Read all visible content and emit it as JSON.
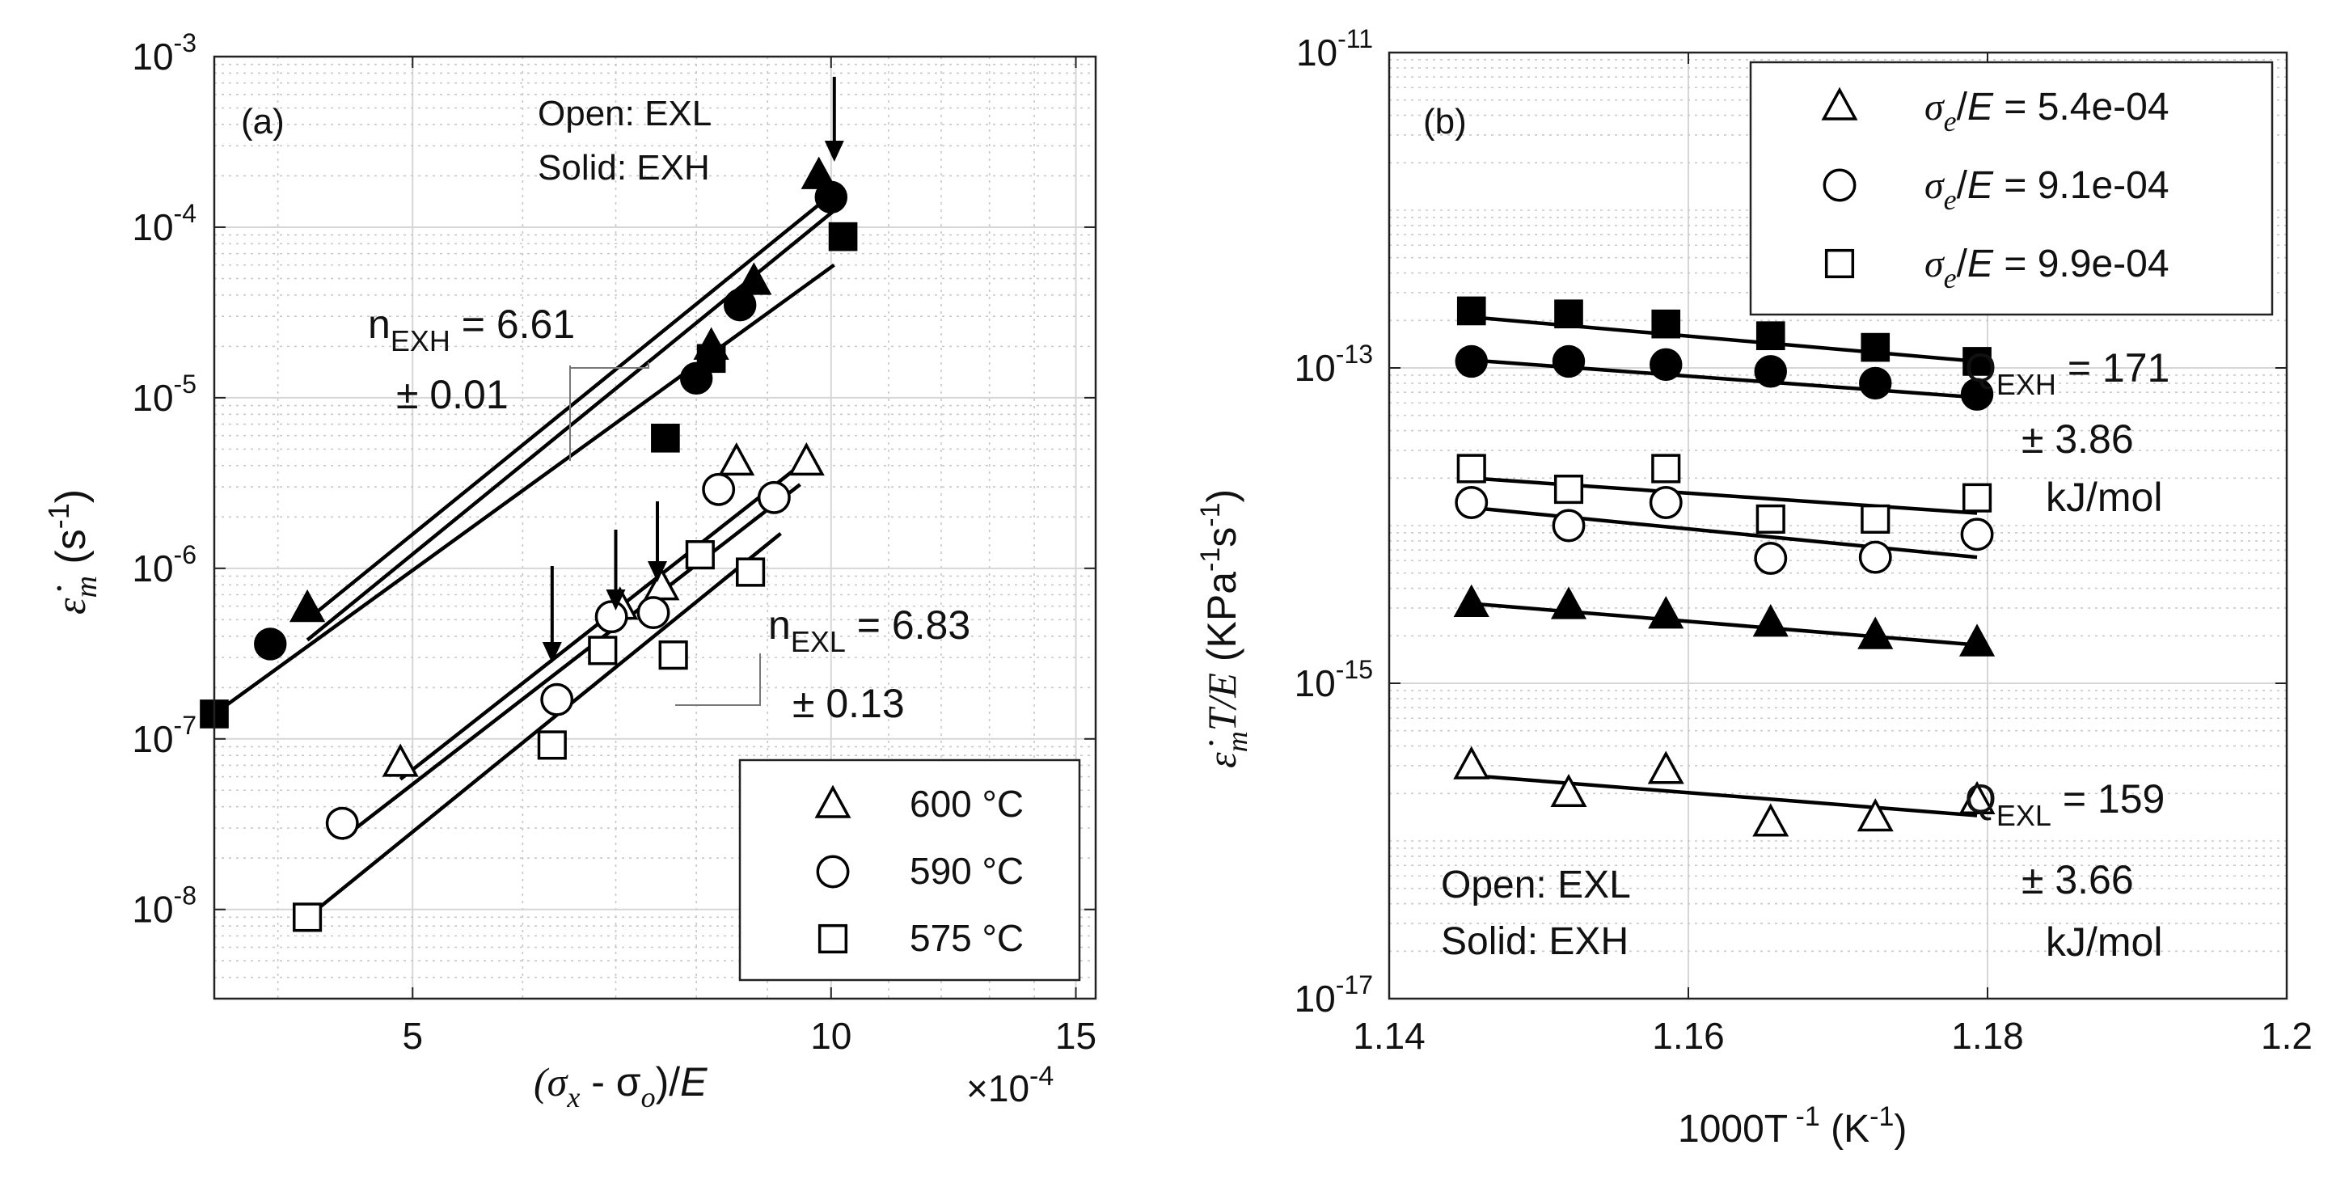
{
  "chart_data": [
    {
      "panel": "(a)",
      "type": "scatter",
      "xscale": "log",
      "yscale": "log",
      "xlim": [
        3.6,
        15.5
      ],
      "ylim": [
        3e-09,
        0.001
      ],
      "xticks": [
        5,
        10,
        15
      ],
      "xtick_labels": [
        "5",
        "10",
        "15"
      ],
      "x_multiplier": "×10",
      "x_multiplier_exp": "-4",
      "ytick_labels": [
        {
          "value": 1e-08,
          "base": "10",
          "exp": "-8"
        },
        {
          "value": 1e-07,
          "base": "10",
          "exp": "-7"
        },
        {
          "value": 1e-06,
          "base": "10",
          "exp": "-6"
        },
        {
          "value": 1e-05,
          "base": "10",
          "exp": "-5"
        },
        {
          "value": 0.0001,
          "base": "10",
          "exp": "-4"
        },
        {
          "value": 0.001,
          "base": "10",
          "exp": "-3"
        }
      ],
      "xlabel": {
        "open": "(σ",
        "sub1": "x",
        "mid": " - σ",
        "sub2": "o",
        "close": ")/",
        "e": "E"
      },
      "ylabel": {
        "sym": "ε̇",
        "sub": "m",
        "unit": " (s",
        "exp": "-1",
        "close": ")"
      },
      "annotations": {
        "open_label": "Open: EXL",
        "solid_label": "Solid: EXH",
        "n_exh": {
          "n": "n",
          "sub": "EXH",
          "value": " = 6.61",
          "pm": "± 0.01"
        },
        "n_exl": {
          "n": "n",
          "sub": "EXL",
          "value": " = 6.83",
          "pm": "± 0.13"
        }
      },
      "arrows_x": [
        6.3,
        7.0,
        7.5,
        10.0
      ],
      "series": [
        {
          "name": "600 °C",
          "marker": "triangle",
          "fill": "open",
          "x": [
            4.9,
            7.05,
            7.55,
            8.55,
            9.6
          ],
          "y": [
            7.2e-08,
            6e-07,
            7.8e-07,
            4.2e-06,
            4.2e-06
          ],
          "fit": {
            "x": [
              4.9,
              9.6
            ],
            "y": [
              5.8e-08,
              4.3e-06
            ]
          }
        },
        {
          "name": "590 °C",
          "marker": "circle",
          "fill": "open",
          "x": [
            4.45,
            6.35,
            6.95,
            7.45,
            8.3,
            9.1
          ],
          "y": [
            3.2e-08,
            1.7e-07,
            5.2e-07,
            5.5e-07,
            2.9e-06,
            2.6e-06
          ],
          "fit": {
            "x": [
              4.45,
              9.5
            ],
            "y": [
              2.6e-08,
              3.1e-06
            ]
          }
        },
        {
          "name": "575 °C",
          "marker": "square",
          "fill": "open",
          "x": [
            4.2,
            6.3,
            6.85,
            7.7,
            8.05,
            8.75
          ],
          "y": [
            9e-09,
            9.2e-08,
            3.3e-07,
            3.1e-07,
            1.2e-06,
            9.5e-07
          ],
          "fit": {
            "x": [
              4.2,
              9.2
            ],
            "y": [
              9e-09,
              1.6e-06
            ]
          }
        },
        {
          "name": "600 °C EXH",
          "marker": "triangle",
          "fill": "solid",
          "x": [
            4.2,
            8.2,
            8.8,
            9.8
          ],
          "y": [
            5.8e-07,
            2e-05,
            4.8e-05,
            0.0002
          ],
          "fit": {
            "x": [
              4.2,
              10.05
            ],
            "y": [
              5e-07,
              0.00016
            ]
          }
        },
        {
          "name": "590 °C EXH",
          "marker": "circle",
          "fill": "solid",
          "x": [
            3.95,
            8.0,
            8.6,
            10.0
          ],
          "y": [
            3.6e-07,
            1.3e-05,
            3.5e-05,
            0.00015
          ],
          "fit": {
            "x": [
              4.2,
              10.05
            ],
            "y": [
              3.8e-07,
              0.000125
            ]
          }
        },
        {
          "name": "575 °C EXH",
          "marker": "square",
          "fill": "solid",
          "x": [
            3.6,
            7.6,
            8.2,
            10.2
          ],
          "y": [
            1.4e-07,
            5.8e-06,
            1.7e-05,
            8.8e-05
          ],
          "fit": {
            "x": [
              3.6,
              10.05
            ],
            "y": [
              1.4e-07,
              6e-05
            ]
          }
        }
      ],
      "legend": {
        "placement": "bottom-right",
        "entries": [
          {
            "marker": "triangle",
            "label": "600 °C"
          },
          {
            "marker": "circle",
            "label": "590 °C"
          },
          {
            "marker": "square",
            "label": "575 °C"
          }
        ]
      }
    },
    {
      "panel": "(b)",
      "type": "scatter",
      "xscale": "linear",
      "yscale": "log",
      "xlim": [
        1.14,
        1.2
      ],
      "ylim": [
        1e-17,
        1e-11
      ],
      "xticks": [
        1.14,
        1.16,
        1.18,
        1.2
      ],
      "xtick_labels": [
        "1.14",
        "1.16",
        "1.18",
        "1.2"
      ],
      "ytick_labels": [
        {
          "value": 1e-17,
          "base": "10",
          "exp": "-17"
        },
        {
          "value": 1e-15,
          "base": "10",
          "exp": "-15"
        },
        {
          "value": 1e-13,
          "base": "10",
          "exp": "-13"
        },
        {
          "value": 1e-11,
          "base": "10",
          "exp": "-11"
        }
      ],
      "xlabel": {
        "text": "1000T",
        "exp": " -1",
        "unit": " (K",
        "exp2": "-1",
        "close": ")"
      },
      "ylabel": {
        "sym": "ε̇",
        "sub": "m",
        "mid": "T/E",
        "unit": " (KPa",
        "exp1": "-1",
        "s": "s",
        "exp2": "-1",
        "close": ")"
      },
      "annotations": {
        "open_label": "Open: EXL",
        "solid_label": "Solid: EXH",
        "q_exh": {
          "q": "Q",
          "sub": "EXH",
          "value": " = 171",
          "pm": "± 3.86",
          "unit": "kJ/mol"
        },
        "q_exl": {
          "q": "Q",
          "sub": "EXL",
          "value": " = 159",
          "pm": "± 3.66",
          "unit": "kJ/mol"
        }
      },
      "series": [
        {
          "name": "σe/E = 5.4e-04 EXL",
          "marker": "triangle",
          "fill": "open",
          "x": [
            1.1455,
            1.152,
            1.1585,
            1.1655,
            1.1725,
            1.1793
          ],
          "y": [
            3e-16,
            2e-16,
            2.8e-16,
            1.3e-16,
            1.4e-16,
            1.8e-16
          ],
          "fit": {
            "x": [
              1.1455,
              1.1793
            ],
            "y": [
              2.6e-16,
              1.45e-16
            ]
          }
        },
        {
          "name": "σe/E = 9.1e-04 EXL",
          "marker": "circle",
          "fill": "open",
          "x": [
            1.1455,
            1.152,
            1.1585,
            1.1655,
            1.1725,
            1.1793
          ],
          "y": [
            1.4e-14,
            1e-14,
            1.4e-14,
            6.2e-15,
            6.3e-15,
            8.8e-15
          ],
          "fit": {
            "x": [
              1.1455,
              1.1793
            ],
            "y": [
              1.3e-14,
              6.3e-15
            ]
          }
        },
        {
          "name": "σe/E = 9.9e-04 EXL",
          "marker": "square",
          "fill": "open",
          "x": [
            1.1455,
            1.152,
            1.1585,
            1.1655,
            1.1725,
            1.1793
          ],
          "y": [
            2.3e-14,
            1.7e-14,
            2.3e-14,
            1.1e-14,
            1.1e-14,
            1.5e-14
          ],
          "fit": {
            "x": [
              1.1455,
              1.1793
            ],
            "y": [
              2e-14,
              1.2e-14
            ]
          }
        },
        {
          "name": "σe/E = 5.4e-04 EXH",
          "marker": "triangle",
          "fill": "solid",
          "x": [
            1.1455,
            1.152,
            1.1585,
            1.1655,
            1.1725,
            1.1793
          ],
          "y": [
            3.2e-15,
            3.1e-15,
            2.7e-15,
            2.4e-15,
            2e-15,
            1.8e-15
          ],
          "fit": {
            "x": [
              1.1455,
              1.1793
            ],
            "y": [
              3.2e-15,
              1.75e-15
            ]
          }
        },
        {
          "name": "σe/E = 9.1e-04 EXH",
          "marker": "circle",
          "fill": "solid",
          "x": [
            1.1455,
            1.152,
            1.1585,
            1.1655,
            1.1725,
            1.1793
          ],
          "y": [
            1.1e-13,
            1.1e-13,
            1.05e-13,
            9.5e-14,
            8e-14,
            6.8e-14
          ],
          "fit": {
            "x": [
              1.1455,
              1.1793
            ],
            "y": [
              1.12e-13,
              6.5e-14
            ]
          }
        },
        {
          "name": "σe/E = 9.9e-04 EXH",
          "marker": "square",
          "fill": "solid",
          "x": [
            1.1455,
            1.152,
            1.1585,
            1.1655,
            1.1725,
            1.1793
          ],
          "y": [
            2.3e-13,
            2.2e-13,
            1.9e-13,
            1.6e-13,
            1.35e-13,
            1.1e-13
          ],
          "fit": {
            "x": [
              1.1455,
              1.1793
            ],
            "y": [
              2.1e-13,
              1.1e-13
            ]
          }
        }
      ],
      "legend": {
        "placement": "top-right",
        "entries": [
          {
            "marker": "triangle",
            "sym": "σ",
            "sub": "e",
            "rest": "/",
            "e": "E",
            "value": " = 5.4e-04"
          },
          {
            "marker": "circle",
            "sym": "σ",
            "sub": "e",
            "rest": "/",
            "e": "E",
            "value": " = 9.1e-04"
          },
          {
            "marker": "square",
            "sym": "σ",
            "sub": "e",
            "rest": "/",
            "e": "E",
            "value": " = 9.9e-04"
          }
        ]
      }
    }
  ]
}
